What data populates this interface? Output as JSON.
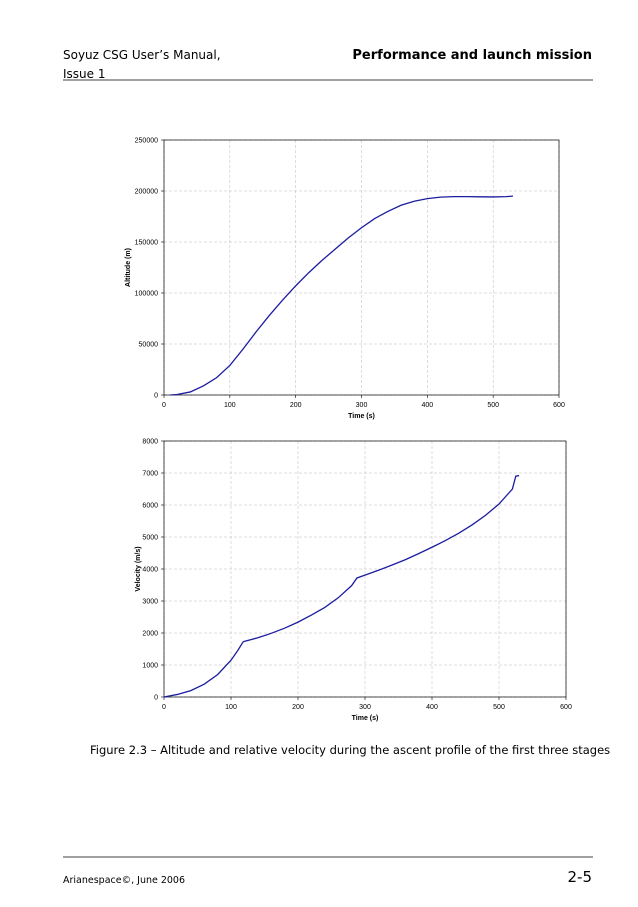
{
  "header": {
    "left_line1": "Soyuz CSG User’s Manual,",
    "left_line2": "Issue 1",
    "right": "Performance and launch mission"
  },
  "chart_data": [
    {
      "type": "line",
      "xlabel": "Time (s)",
      "ylabel": "Altitude (m)",
      "color": "#1c1ca0",
      "grid": true,
      "xlim": [
        0,
        600
      ],
      "xticks": [
        0,
        100,
        200,
        300,
        400,
        500,
        600
      ],
      "ylim": [
        0,
        250000
      ],
      "yticks": [
        0,
        50000,
        100000,
        150000,
        200000,
        250000
      ],
      "x": [
        10,
        20,
        40,
        60,
        80,
        100,
        120,
        140,
        160,
        180,
        200,
        220,
        240,
        260,
        280,
        300,
        320,
        340,
        360,
        380,
        400,
        420,
        440,
        460,
        480,
        500,
        520,
        530
      ],
      "values": [
        0,
        500,
        3000,
        9000,
        17000,
        29000,
        45000,
        62000,
        78000,
        93000,
        107000,
        120000,
        132000,
        143000,
        154000,
        164000,
        173000,
        180000,
        186000,
        190000,
        192500,
        194000,
        194500,
        194500,
        194300,
        194200,
        194500,
        195000
      ]
    },
    {
      "type": "line",
      "xlabel": "Time (s)",
      "ylabel": "Velocity (m/s)",
      "color": "#1c1ca0",
      "grid": true,
      "xlim": [
        0,
        600
      ],
      "xticks": [
        0,
        100,
        200,
        300,
        400,
        500,
        600
      ],
      "ylim": [
        0,
        8000
      ],
      "yticks": [
        0,
        1000,
        2000,
        3000,
        4000,
        5000,
        6000,
        7000,
        8000
      ],
      "x": [
        0,
        20,
        40,
        60,
        80,
        100,
        110,
        118,
        120,
        140,
        160,
        180,
        200,
        220,
        240,
        260,
        280,
        288,
        300,
        320,
        340,
        360,
        380,
        400,
        420,
        440,
        460,
        480,
        500,
        520,
        525,
        530
      ],
      "values": [
        0,
        80,
        200,
        400,
        700,
        1150,
        1450,
        1720,
        1740,
        1850,
        1990,
        2150,
        2340,
        2560,
        2800,
        3100,
        3480,
        3720,
        3810,
        3960,
        4120,
        4290,
        4480,
        4680,
        4890,
        5120,
        5380,
        5680,
        6030,
        6500,
        6900,
        6920
      ]
    }
  ],
  "caption": "Figure 2.3 – Altitude and relative velocity during the ascent profile of the first three stages",
  "footer": {
    "left": "Arianespace©, June 2006",
    "page": "2-5"
  }
}
